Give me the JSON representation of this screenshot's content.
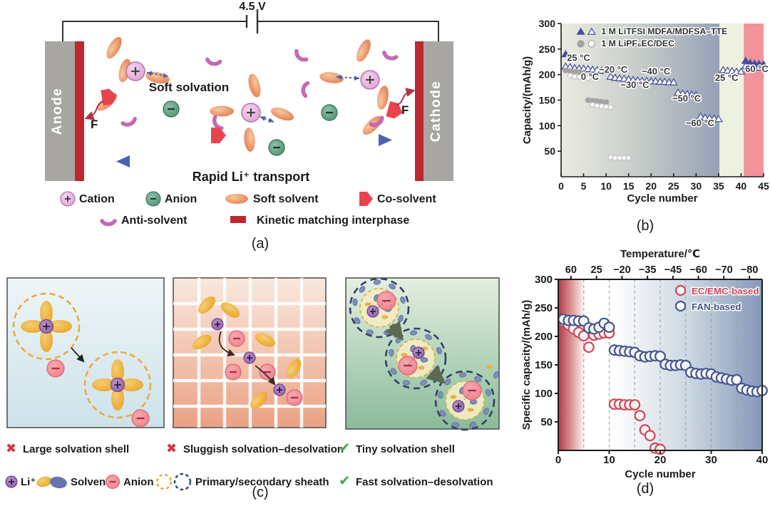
{
  "panel_a": {
    "label": "(a)",
    "voltage_label": "4.5 V",
    "anode_label": "Anode",
    "cathode_label": "Cathode",
    "soft_solvation_label": "Soft solvation",
    "transport_label": "Rapid Li⁺ transport",
    "fluoride_label": "F",
    "legend": [
      {
        "icon": "cation-icon",
        "label": "Cation"
      },
      {
        "icon": "anion-icon",
        "label": "Anion"
      },
      {
        "icon": "soft-solvent-icon",
        "label": "Soft solvent"
      },
      {
        "icon": "co-solvent-icon",
        "label": "Co-solvent"
      },
      {
        "icon": "anti-solvent-icon",
        "label": "Anti-solvent"
      },
      {
        "icon": "interphase-icon",
        "label": "Kinetic matching interphase"
      }
    ]
  },
  "panel_b": {
    "label": "(b)"
  },
  "panel_c": {
    "label": "(c)",
    "verdicts": [
      {
        "mark": "cross",
        "label": "Large solvation shell"
      },
      {
        "mark": "cross",
        "label": "Sluggish solvation–desolvation"
      },
      {
        "mark": "check",
        "label": "Tiny solvation shell"
      },
      {
        "mark": "check",
        "label": "Fast solvation–desolvation"
      }
    ],
    "legend": [
      {
        "icon": "li-ion-icon",
        "label": "Li⁺"
      },
      {
        "icon": "solvent-pair-icon",
        "label": "Solvent"
      },
      {
        "icon": "anion-icon",
        "label": "Anion"
      },
      {
        "icon": "sheath-icons",
        "label": "Primary/secondary sheath"
      }
    ]
  },
  "panel_d": {
    "label": "(d)"
  },
  "chart_data": [
    {
      "id": "b",
      "type": "scatter",
      "xlabel": "Cycle number",
      "ylabel": "Capacity/(mAh/g)",
      "xlim": [
        0,
        45
      ],
      "ylim": [
        0,
        300
      ],
      "xticks": [
        0,
        5,
        10,
        15,
        20,
        25,
        30,
        35,
        40,
        45
      ],
      "yticks": [
        50,
        100,
        150,
        200,
        250,
        300
      ],
      "frame": "L",
      "bands": [
        {
          "x0": 0,
          "x1": 35.2,
          "fill": [
            "#eaece0",
            "#c6ccc9",
            "#97a1b6"
          ]
        },
        {
          "x0": 35.2,
          "x1": 40.6,
          "fill": "#edf1e0"
        },
        {
          "x0": 40.6,
          "x1": 45,
          "fill": "#f2929b"
        }
      ],
      "legend": {
        "entries": [
          {
            "label": "1 M LiTFSI MDFA/MDFSA–TTE",
            "color": "#454e9e",
            "markers": [
              "triangle-filled",
              "triangle-open"
            ]
          },
          {
            "label": "1 M LiPF₆EC/DEC",
            "color": "#a3a3a3",
            "markers": [
              "circle-filled",
              "circle-open"
            ]
          }
        ]
      },
      "annotations": [
        {
          "text": "25 °C",
          "x": 1.3,
          "y": 227
        },
        {
          "text": "0 °C",
          "x": 4.4,
          "y": 190
        },
        {
          "text": "−20 °C",
          "x": 8.4,
          "y": 204
        },
        {
          "text": "−30 °C",
          "x": 13.2,
          "y": 174
        },
        {
          "text": "−40 °C",
          "x": 17.9,
          "y": 200
        },
        {
          "text": "−50 °C",
          "x": 24.7,
          "y": 147
        },
        {
          "text": "−60 °C",
          "x": 27.7,
          "y": 99
        },
        {
          "text": "25 °C",
          "x": 34.2,
          "y": 188
        },
        {
          "text": "60 °C",
          "x": 40.9,
          "y": 205
        }
      ],
      "series": [
        {
          "name": "1 M LiTFSI MDFA/MDFSA–TTE (filled)",
          "marker": "triangle",
          "filled": true,
          "color": "#454e9e",
          "points": [
            [
              1,
              240
            ],
            [
              41,
              227
            ],
            [
              42,
              223
            ],
            [
              43,
              222
            ],
            [
              44,
              221
            ],
            [
              45,
              220
            ]
          ]
        },
        {
          "name": "1 M LiTFSI MDFA/MDFSA–TTE (open)",
          "marker": "triangle",
          "filled": false,
          "color": "#454e9e",
          "points": [
            [
              1,
              216
            ],
            [
              2,
              215
            ],
            [
              3,
              213
            ],
            [
              4,
              212
            ],
            [
              5,
              212
            ],
            [
              6,
              211
            ],
            [
              7,
              210
            ],
            [
              8,
              209
            ],
            [
              9,
              208
            ],
            [
              10,
              207
            ],
            [
              11,
              196
            ],
            [
              12,
              194
            ],
            [
              13,
              193
            ],
            [
              14,
              192
            ],
            [
              15,
              191
            ],
            [
              16,
              190
            ],
            [
              17,
              189
            ],
            [
              18,
              188
            ],
            [
              19,
              188
            ],
            [
              20,
              187
            ],
            [
              21,
              187
            ],
            [
              22,
              186
            ],
            [
              23,
              186
            ],
            [
              24,
              185
            ],
            [
              25,
              185
            ],
            [
              26,
              165
            ],
            [
              27,
              163
            ],
            [
              28,
              162
            ],
            [
              29,
              161
            ],
            [
              30,
              160
            ],
            [
              31,
              118
            ],
            [
              32,
              116
            ],
            [
              33,
              115
            ],
            [
              34,
              114
            ],
            [
              35,
              113
            ],
            [
              36,
              209
            ],
            [
              37,
              208
            ],
            [
              38,
              207
            ],
            [
              39,
              206
            ],
            [
              40,
              206
            ],
            [
              41,
              217
            ],
            [
              42,
              216
            ],
            [
              43,
              215
            ],
            [
              44,
              214
            ],
            [
              45,
              214
            ]
          ]
        },
        {
          "name": "1 M LiPF₆EC/DEC (filled)",
          "marker": "circle",
          "filled": true,
          "color": "#a3a3a3",
          "points": [
            [
              1,
              208
            ],
            [
              2,
              207
            ],
            [
              3,
              206
            ],
            [
              4,
              205
            ],
            [
              5,
              204
            ],
            [
              6,
              150
            ],
            [
              7,
              149
            ],
            [
              8,
              148
            ],
            [
              9,
              147
            ],
            [
              10,
              146
            ]
          ]
        },
        {
          "name": "1 M LiPF₆EC/DEC (open)",
          "marker": "circle",
          "filled": false,
          "color": "#bfbfbf",
          "points": [
            [
              2,
              198
            ],
            [
              3,
              196
            ],
            [
              4,
              195
            ],
            [
              5,
              194
            ],
            [
              6,
              193
            ],
            [
              7,
              141
            ],
            [
              8,
              139
            ],
            [
              9,
              138
            ],
            [
              10,
              137
            ],
            [
              11,
              136
            ],
            [
              11,
              38
            ],
            [
              12,
              37
            ],
            [
              13,
              37
            ],
            [
              14,
              37
            ],
            [
              15,
              37
            ]
          ]
        }
      ]
    },
    {
      "id": "d",
      "type": "scatter",
      "xlabel": "Cycle number",
      "ylabel": "Specific capacity/(mAh/g)",
      "top_axis": {
        "title": "Temperature/℃",
        "ticks": [
          [
            2.5,
            "60"
          ],
          [
            7.5,
            "25"
          ],
          [
            12.5,
            "−20"
          ],
          [
            17.5,
            "−35"
          ],
          [
            22.5,
            "−45"
          ],
          [
            27.5,
            "−60"
          ],
          [
            32.5,
            "−70"
          ],
          [
            37.5,
            "−80"
          ]
        ]
      },
      "xlim": [
        0,
        40
      ],
      "ylim": [
        0,
        300
      ],
      "xticks": [
        0,
        10,
        20,
        30,
        40
      ],
      "yticks": [
        50,
        100,
        150,
        200,
        250,
        300
      ],
      "frame": "box",
      "bands": [
        {
          "x0": 0,
          "x1": 5.3,
          "fill": [
            "#b03a46",
            "#dd9795",
            "#ffffff"
          ]
        },
        {
          "x0": 5.3,
          "x1": 10.6,
          "fill": "#ffffff"
        },
        {
          "x0": 10.6,
          "x1": 40,
          "fill": [
            "#ffffff",
            "#cdd8e2",
            "#8498b8"
          ]
        }
      ],
      "vlines": {
        "x": [
          5,
          10,
          15,
          20,
          25,
          30,
          35
        ],
        "color": "#9aa2ac"
      },
      "legend": {
        "entries": [
          {
            "label": "EC/EMC-based",
            "color": "#cf4558",
            "markers": [
              "circle-open"
            ]
          },
          {
            "label": "FAN-based",
            "color": "#46548c",
            "markers": [
              "circle-open"
            ]
          }
        ]
      },
      "annotations": [],
      "series": [
        {
          "name": "EC/EMC-based",
          "marker": "circle",
          "filled": false,
          "color": "#cf4558",
          "fill": "#fdf3f4",
          "points": [
            [
              1,
              226
            ],
            [
              2,
              220
            ],
            [
              3,
              213
            ],
            [
              4,
              207
            ],
            [
              5,
              201
            ],
            [
              6,
              181
            ],
            [
              7,
              202
            ],
            [
              8,
              204
            ],
            [
              9,
              206
            ],
            [
              10,
              206
            ],
            [
              11,
              81
            ],
            [
              12,
              81
            ],
            [
              13,
              80
            ],
            [
              14,
              80
            ],
            [
              15,
              80
            ],
            [
              16,
              61
            ],
            [
              17,
              36
            ],
            [
              18,
              26
            ],
            [
              19,
              4
            ],
            [
              20,
              2
            ]
          ]
        },
        {
          "name": "FAN-based",
          "marker": "circle",
          "filled": false,
          "color": "#46548c",
          "fill": "#f4f6fc",
          "points": [
            [
              1,
              230
            ],
            [
              2,
              228
            ],
            [
              3,
              228
            ],
            [
              4,
              227
            ],
            [
              5,
              227
            ],
            [
              6,
              215
            ],
            [
              7,
              213
            ],
            [
              8,
              216
            ],
            [
              9,
              223
            ],
            [
              10,
              216
            ],
            [
              11,
              176
            ],
            [
              12,
              175
            ],
            [
              13,
              174
            ],
            [
              14,
              173
            ],
            [
              15,
              172
            ],
            [
              16,
              166
            ],
            [
              17,
              164
            ],
            [
              18,
              165
            ],
            [
              19,
              166
            ],
            [
              20,
              165
            ],
            [
              21,
              151
            ],
            [
              22,
              149
            ],
            [
              23,
              149
            ],
            [
              24,
              150
            ],
            [
              25,
              149
            ],
            [
              26,
              137
            ],
            [
              27,
              135
            ],
            [
              28,
              134
            ],
            [
              29,
              135
            ],
            [
              30,
              134
            ],
            [
              31,
              129
            ],
            [
              32,
              127
            ],
            [
              33,
              125
            ],
            [
              34,
              123
            ],
            [
              35,
              124
            ],
            [
              36,
              109
            ],
            [
              37,
              106
            ],
            [
              38,
              104
            ],
            [
              39,
              103
            ],
            [
              40,
              105
            ]
          ]
        }
      ]
    }
  ],
  "colors": {
    "blue_series": "#454e9e",
    "gray_series": "#a3a3a3",
    "red_series": "#cf4558",
    "navy_series": "#46548c",
    "band_green": "#edf1e0",
    "band_pink": "#f2929b",
    "electrode_gray": "#a8a6a3",
    "interphase_red": "#bf2730",
    "co_solvent_red": "#e8434f",
    "anion_green": "#66a287",
    "cation_pink": "#ecc0e4",
    "solvent_orange": "#ec9763",
    "anti_solvent_purple": "#c468b4",
    "check_green": "#3fae49",
    "cross_red": "#d8333d"
  }
}
